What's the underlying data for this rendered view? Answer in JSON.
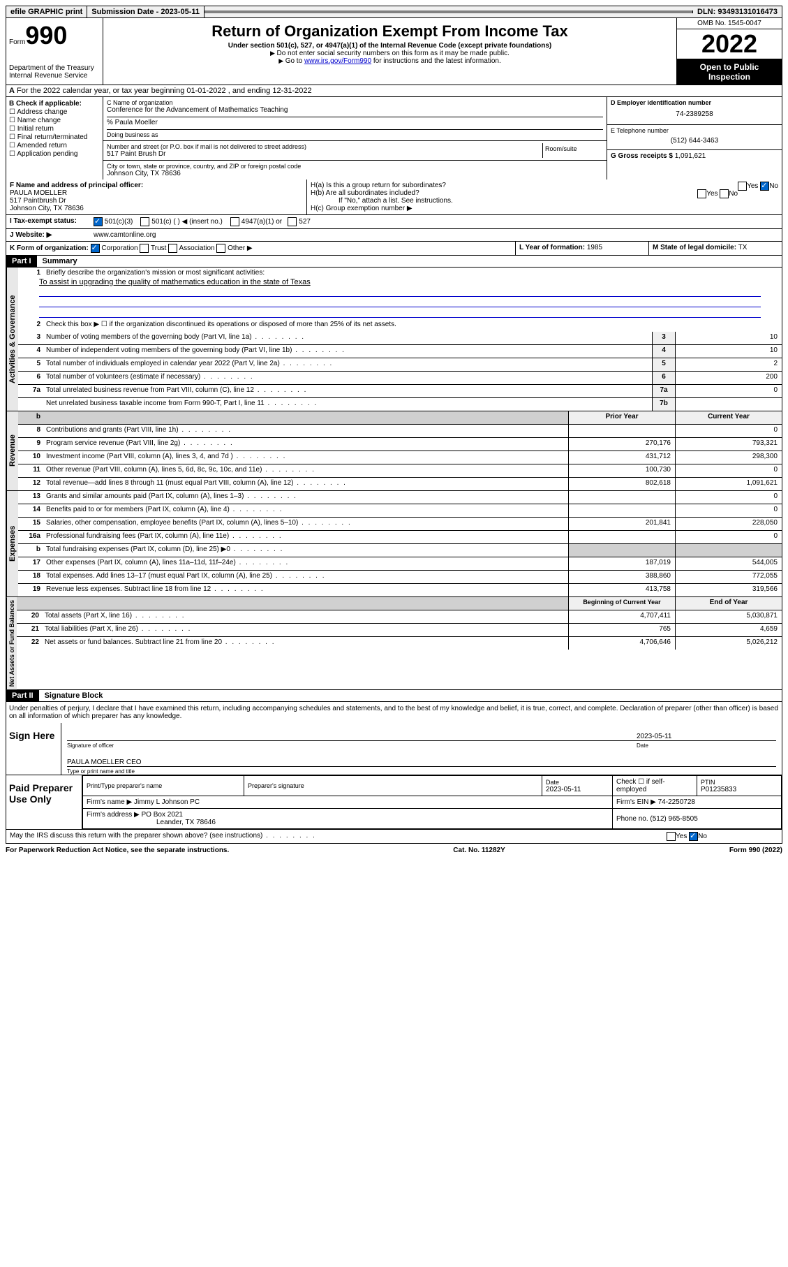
{
  "topbar": {
    "efile": "efile GRAPHIC print",
    "submission_label": "Submission Date - ",
    "submission_date": "2023-05-11",
    "dln_label": "DLN: ",
    "dln": "93493131016473"
  },
  "header": {
    "form_prefix": "Form",
    "form_number": "990",
    "dept": "Department of the Treasury",
    "irs": "Internal Revenue Service",
    "title": "Return of Organization Exempt From Income Tax",
    "subtitle": "Under section 501(c), 527, or 4947(a)(1) of the Internal Revenue Code (except private foundations)",
    "note1": "Do not enter social security numbers on this form as it may be made public.",
    "note2_pre": "Go to ",
    "note2_link": "www.irs.gov/Form990",
    "note2_post": " for instructions and the latest information.",
    "omb": "OMB No. 1545-0047",
    "year": "2022",
    "open": "Open to Public Inspection"
  },
  "line_a": "For the 2022 calendar year, or tax year beginning 01-01-2022     , and ending 12-31-2022",
  "check_b": {
    "label": "B Check if applicable:",
    "addr": "Address change",
    "name": "Name change",
    "init": "Initial return",
    "final": "Final return/terminated",
    "amend": "Amended return",
    "app": "Application pending"
  },
  "org": {
    "c_label": "C Name of organization",
    "name": "Conference for the Advancement of Mathematics Teaching",
    "care_of": "% Paula Moeller",
    "dba_label": "Doing business as",
    "street_label": "Number and street (or P.O. box if mail is not delivered to street address)",
    "room_label": "Room/suite",
    "street": "517 Paint Brush Dr",
    "city_label": "City or town, state or province, country, and ZIP or foreign postal code",
    "city": "Johnson City, TX  78636"
  },
  "right_col": {
    "d_label": "D Employer identification number",
    "ein": "74-2389258",
    "e_label": "E Telephone number",
    "phone": "(512) 644-3463",
    "g_label": "G Gross receipts $",
    "gross": "1,091,621"
  },
  "officer": {
    "f_label": "F Name and address of principal officer:",
    "name": "PAULA MOELLER",
    "street": "517 Paintbrush Dr",
    "city": "Johnson City, TX  78636"
  },
  "h": {
    "ha": "H(a)  Is this a group return for subordinates?",
    "hb": "H(b)  Are all subordinates included?",
    "hb_note": "If \"No,\" attach a list. See instructions.",
    "hc": "H(c)  Group exemption number ▶",
    "yes": "Yes",
    "no": "No"
  },
  "tax_status": {
    "label": "I    Tax-exempt status:",
    "opt1": "501(c)(3)",
    "opt2": "501(c) (  ) ◀ (insert no.)",
    "opt3": "4947(a)(1) or",
    "opt4": "527"
  },
  "website": {
    "label": "J   Website: ▶",
    "value": "www.camtonline.org"
  },
  "k": {
    "label": "K Form of organization:",
    "corp": "Corporation",
    "trust": "Trust",
    "assoc": "Association",
    "other": "Other ▶"
  },
  "l": {
    "label": "L Year of formation:",
    "value": "1985"
  },
  "m": {
    "label": "M State of legal domicile:",
    "value": "TX"
  },
  "part1": {
    "header": "Part I",
    "title": "Summary",
    "line1_label": "Briefly describe the organization's mission or most significant activities:",
    "mission": "To assist in upgrading the quality of mathematics education in the state of Texas",
    "line2": "Check this box ▶ ☐  if the organization discontinued its operations or disposed of more than 25% of its net assets.",
    "lines": [
      {
        "n": "3",
        "t": "Number of voting members of the governing body (Part VI, line 1a)",
        "box": "3",
        "v": "10"
      },
      {
        "n": "4",
        "t": "Number of independent voting members of the governing body (Part VI, line 1b)",
        "box": "4",
        "v": "10"
      },
      {
        "n": "5",
        "t": "Total number of individuals employed in calendar year 2022 (Part V, line 2a)",
        "box": "5",
        "v": "2"
      },
      {
        "n": "6",
        "t": "Total number of volunteers (estimate if necessary)",
        "box": "6",
        "v": "200"
      },
      {
        "n": "7a",
        "t": "Total unrelated business revenue from Part VIII, column (C), line 12",
        "box": "7a",
        "v": "0"
      },
      {
        "n": "",
        "t": "Net unrelated business taxable income from Form 990-T, Part I, line 11",
        "box": "7b",
        "v": ""
      }
    ],
    "col_prior": "Prior Year",
    "col_current": "Current Year",
    "revenue": [
      {
        "n": "8",
        "t": "Contributions and grants (Part VIII, line 1h)",
        "p": "",
        "c": "0"
      },
      {
        "n": "9",
        "t": "Program service revenue (Part VIII, line 2g)",
        "p": "270,176",
        "c": "793,321"
      },
      {
        "n": "10",
        "t": "Investment income (Part VIII, column (A), lines 3, 4, and 7d )",
        "p": "431,712",
        "c": "298,300"
      },
      {
        "n": "11",
        "t": "Other revenue (Part VIII, column (A), lines 5, 6d, 8c, 9c, 10c, and 11e)",
        "p": "100,730",
        "c": "0"
      },
      {
        "n": "12",
        "t": "Total revenue—add lines 8 through 11 (must equal Part VIII, column (A), line 12)",
        "p": "802,618",
        "c": "1,091,621"
      }
    ],
    "expenses": [
      {
        "n": "13",
        "t": "Grants and similar amounts paid (Part IX, column (A), lines 1–3)",
        "p": "",
        "c": "0"
      },
      {
        "n": "14",
        "t": "Benefits paid to or for members (Part IX, column (A), line 4)",
        "p": "",
        "c": "0"
      },
      {
        "n": "15",
        "t": "Salaries, other compensation, employee benefits (Part IX, column (A), lines 5–10)",
        "p": "201,841",
        "c": "228,050"
      },
      {
        "n": "16a",
        "t": "Professional fundraising fees (Part IX, column (A), line 11e)",
        "p": "",
        "c": "0"
      },
      {
        "n": "b",
        "t": "Total fundraising expenses (Part IX, column (D), line 25) ▶0",
        "p": "—shade—",
        "c": "—shade—"
      },
      {
        "n": "17",
        "t": "Other expenses (Part IX, column (A), lines 11a–11d, 11f–24e)",
        "p": "187,019",
        "c": "544,005"
      },
      {
        "n": "18",
        "t": "Total expenses. Add lines 13–17 (must equal Part IX, column (A), line 25)",
        "p": "388,860",
        "c": "772,055"
      },
      {
        "n": "19",
        "t": "Revenue less expenses. Subtract line 18 from line 12",
        "p": "413,758",
        "c": "319,566"
      }
    ],
    "col_begin": "Beginning of Current Year",
    "col_end": "End of Year",
    "netassets": [
      {
        "n": "20",
        "t": "Total assets (Part X, line 16)",
        "p": "4,707,411",
        "c": "5,030,871"
      },
      {
        "n": "21",
        "t": "Total liabilities (Part X, line 26)",
        "p": "765",
        "c": "4,659"
      },
      {
        "n": "22",
        "t": "Net assets or fund balances. Subtract line 21 from line 20",
        "p": "4,706,646",
        "c": "5,026,212"
      }
    ],
    "side_gov": "Activities & Governance",
    "side_rev": "Revenue",
    "side_exp": "Expenses",
    "side_net": "Net Assets or Fund Balances"
  },
  "part2": {
    "header": "Part II",
    "title": "Signature Block",
    "penalty": "Under penalties of perjury, I declare that I have examined this return, including accompanying schedules and statements, and to the best of my knowledge and belief, it is true, correct, and complete. Declaration of preparer (other than officer) is based on all information of which preparer has any knowledge.",
    "sign_here": "Sign Here",
    "sig_officer": "Signature of officer",
    "sig_date_label": "Date",
    "sig_date": "2023-05-11",
    "sig_name": "PAULA MOELLER CEO",
    "sig_name_label": "Type or print name and title",
    "paid": "Paid Preparer Use Only",
    "prep_name_label": "Print/Type preparer's name",
    "prep_sig_label": "Preparer's signature",
    "prep_date_label": "Date",
    "prep_date": "2023-05-11",
    "prep_check": "Check ☐ if self-employed",
    "ptin_label": "PTIN",
    "ptin": "P01235833",
    "firm_name_label": "Firm's name    ▶",
    "firm_name": "Jimmy L Johnson PC",
    "firm_ein_label": "Firm's EIN ▶",
    "firm_ein": "74-2250728",
    "firm_addr_label": "Firm's address ▶",
    "firm_addr1": "PO Box 2021",
    "firm_addr2": "Leander, TX  78646",
    "firm_phone_label": "Phone no.",
    "firm_phone": "(512) 965-8505",
    "discuss": "May the IRS discuss this return with the preparer shown above? (see instructions)"
  },
  "footer": {
    "paperwork": "For Paperwork Reduction Act Notice, see the separate instructions.",
    "cat": "Cat. No. 11282Y",
    "form": "Form 990 (2022)"
  }
}
